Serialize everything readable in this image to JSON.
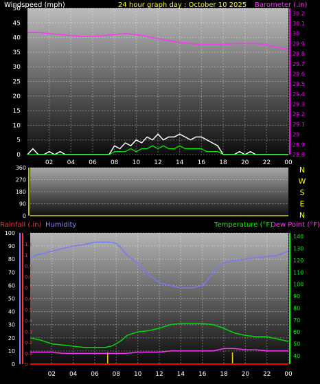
{
  "chart_data": [
    {
      "type": "line",
      "title": "24 hour graph day : October 10 2025",
      "left_label": "Windspeed (mph)",
      "right_label": "Barometer (.in)",
      "x_ticks": [
        "02",
        "04",
        "06",
        "08",
        "10",
        "12",
        "14",
        "16",
        "18",
        "20",
        "22",
        "00"
      ],
      "y_left_ticks": [
        "0",
        "5",
        "10",
        "15",
        "20",
        "25",
        "30",
        "35",
        "40",
        "45",
        "50"
      ],
      "y_left_range": [
        0,
        50
      ],
      "y_right_ticks": [
        "28.8",
        "28.9",
        "29",
        "29.1",
        "29.2",
        "29.3",
        "29.4",
        "29.5",
        "29.6",
        "29.7",
        "29.8",
        "29.9",
        "30",
        "30.1",
        "30.2"
      ],
      "y_right_range": [
        28.8,
        30.25
      ],
      "colors": {
        "wind": "#ffffff",
        "gust": "#00ff00",
        "barometer": "#ff33ff",
        "right_axis": "#ff00ff"
      },
      "series": [
        {
          "key": "barometer",
          "x": [
            0,
            1,
            2,
            3,
            4,
            5,
            6,
            7,
            8,
            9,
            10,
            11,
            12,
            13,
            14,
            15,
            16,
            17,
            18,
            19,
            20,
            21,
            22,
            23,
            24
          ],
          "values": [
            30.01,
            30.01,
            30.0,
            29.99,
            29.98,
            29.97,
            29.97,
            29.98,
            29.99,
            30.0,
            29.99,
            29.97,
            29.95,
            29.93,
            29.91,
            29.9,
            29.89,
            29.89,
            29.89,
            29.9,
            29.9,
            29.9,
            29.89,
            29.86,
            29.84
          ]
        },
        {
          "key": "wind",
          "x": [
            0,
            0.5,
            1,
            1.5,
            2,
            2.5,
            3,
            3.5,
            4,
            4.5,
            5,
            5.5,
            6,
            6.5,
            7,
            7.5,
            8,
            8.5,
            9,
            9.5,
            10,
            10.5,
            11,
            11.5,
            12,
            12.5,
            13,
            13.5,
            14,
            14.5,
            15,
            15.5,
            16,
            16.5,
            17,
            17.5,
            18,
            18.5,
            19,
            19.5,
            20,
            20.5,
            21,
            21.5,
            22,
            22.5,
            23,
            23.5,
            24
          ],
          "values": [
            0,
            2,
            0,
            0,
            1,
            0,
            1,
            0,
            0,
            0,
            0,
            0,
            0,
            0,
            0,
            0,
            3,
            2,
            4,
            3,
            5,
            4,
            6,
            5,
            7,
            5,
            6,
            6,
            7,
            6,
            5,
            6,
            6,
            5,
            4,
            3,
            0,
            0,
            0,
            1,
            0,
            1,
            0,
            0,
            0,
            0,
            0,
            0,
            0
          ]
        },
        {
          "key": "gust",
          "x": [
            0,
            7.5,
            8,
            8.5,
            9,
            9.5,
            10,
            10.5,
            11,
            11.5,
            12,
            12.5,
            13,
            13.5,
            14,
            14.5,
            15,
            15.5,
            16,
            16.5,
            17,
            17.5,
            18,
            24
          ],
          "values": [
            0,
            0,
            1,
            1,
            1,
            2,
            1,
            2,
            2,
            3,
            2,
            3,
            2,
            2,
            3,
            2,
            2,
            2,
            2,
            1,
            1,
            1,
            0,
            0
          ]
        }
      ]
    },
    {
      "type": "line",
      "title": "",
      "left_ticks": [
        "0",
        "90",
        "180",
        "270",
        "360"
      ],
      "y_range": [
        0,
        360
      ],
      "direction_labels": [
        "N",
        "W",
        "S",
        "E",
        "N"
      ],
      "colors": {
        "direction": "#ffff00"
      },
      "series": [
        {
          "key": "direction",
          "x": [
            0,
            24
          ],
          "values": [
            0,
            0
          ]
        }
      ]
    },
    {
      "type": "line",
      "title": "",
      "left_labels": {
        "rainfall": "Rainfall (.in)",
        "humidity": "Humidity"
      },
      "right_labels": {
        "temperature": "Temperature (°F)",
        "dew_point": "Dew Point (°F)"
      },
      "x_ticks": [
        "02",
        "04",
        "06",
        "08",
        "10",
        "12",
        "14",
        "16",
        "18",
        "20",
        "22",
        "00"
      ],
      "y_humidity_ticks": [
        "0",
        "10",
        "20",
        "30",
        "40",
        "50",
        "60",
        "70",
        "80",
        "90",
        "100"
      ],
      "y_humidity_range": [
        0,
        100
      ],
      "y_rain_ticks": [
        "0",
        "0.1",
        "0.2",
        "0.3",
        "0.4",
        "0.5",
        "0.6",
        "0.7",
        "0.8",
        "0.9",
        "1",
        "1.1"
      ],
      "y_rain_range": [
        0,
        1.2
      ],
      "y_temp_ticks": [
        "40",
        "50",
        "60",
        "70",
        "80",
        "90",
        "100",
        "110",
        "120",
        "130",
        "140"
      ],
      "y_temp_range": [
        33,
        143
      ],
      "colors": {
        "humidity": "#7777ff",
        "rain": "#ff0000",
        "temperature": "#00dd00",
        "dew_point": "#ff33ff",
        "hour_marks": "#ffcc00",
        "rain_axis": "#ff3333",
        "humidity_axis": "#8888ff",
        "temp_axis": "#00ff00"
      },
      "series": [
        {
          "key": "humidity",
          "x": [
            0,
            0.5,
            1,
            2,
            3,
            4,
            5,
            6,
            7,
            7.5,
            8,
            8.5,
            9,
            10,
            11,
            12,
            13,
            14,
            15,
            16,
            16.5,
            17,
            17.5,
            18,
            19,
            20,
            21,
            22,
            23,
            24
          ],
          "values": [
            80,
            83,
            84,
            86,
            88,
            90,
            91,
            93,
            93,
            93,
            92,
            88,
            83,
            77,
            68,
            62,
            60,
            58,
            58,
            60,
            64,
            70,
            75,
            77,
            79,
            80,
            81,
            82,
            83,
            86
          ]
        },
        {
          "key": "temperature",
          "x": [
            0,
            1,
            2,
            3,
            4,
            5,
            6,
            7,
            7.5,
            8,
            8.5,
            9,
            10,
            11,
            12,
            13,
            14,
            15,
            16,
            17,
            18,
            19,
            20,
            21,
            22,
            23,
            24
          ],
          "values": [
            55,
            53,
            50,
            49,
            48,
            47,
            47,
            47,
            48,
            50,
            53,
            57,
            60,
            61,
            63,
            66,
            67,
            67,
            67,
            66,
            63,
            59,
            57,
            56,
            56,
            54,
            52
          ]
        },
        {
          "key": "dew_point",
          "x": [
            0,
            1,
            2,
            3,
            4,
            5,
            6,
            7,
            8,
            9,
            10,
            11,
            12,
            13,
            14,
            15,
            16,
            17,
            18,
            19,
            20,
            21,
            22,
            23,
            24
          ],
          "values": [
            43,
            43,
            43,
            42,
            42,
            42,
            42,
            42,
            42,
            42,
            43,
            43,
            43,
            44,
            44,
            44,
            44,
            44,
            46,
            46,
            45,
            45,
            44,
            44,
            44
          ]
        },
        {
          "key": "rain",
          "x": [
            0,
            24
          ],
          "values": [
            0,
            0
          ]
        },
        {
          "key": "hour_marks",
          "x": [
            7.2,
            18.8
          ],
          "values": [
            1,
            1
          ]
        }
      ]
    }
  ]
}
